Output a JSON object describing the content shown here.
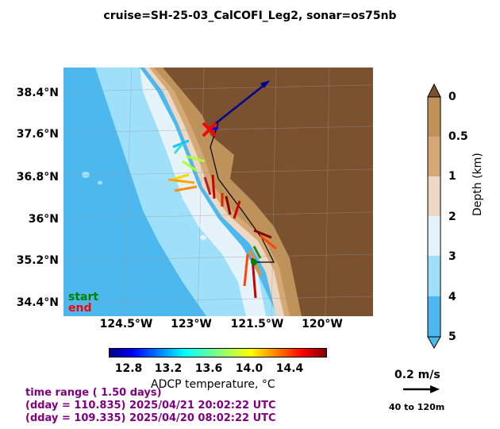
{
  "title": "cruise=SH-25-03_CalCOFI_Leg2,   sonar=os75nb",
  "map": {
    "lat_ticks": [
      "38.4°N",
      "37.6°N",
      "36.8°N",
      "36°N",
      "35.2°N",
      "34.4°N"
    ],
    "lon_ticks": [
      "124.5°W",
      "123°W",
      "121.5°W",
      "120°W"
    ],
    "start_label": "start",
    "end_label": "end",
    "colors": {
      "deep_ocean": "#4db8ee",
      "mid_ocean": "#9ee0fa",
      "shelf": "#e6f3fa",
      "land": "#7a5230",
      "slope1": "#efd8c3",
      "slope2": "#d5a976",
      "coast": "#bf925a",
      "start": "#008000",
      "end": "#ff0000"
    }
  },
  "depth_colorbar": {
    "label": "Depth (km)",
    "ticks": [
      "0",
      "0.5",
      "1",
      "2",
      "3",
      "4",
      "5"
    ]
  },
  "temp_colorbar": {
    "label": "ADCP temperature, °C",
    "ticks": [
      "12.8",
      "13.2",
      "13.6",
      "14.0",
      "14.4"
    ]
  },
  "time_info": {
    "range": "time range ( 1.50 days)",
    "end_time": "(dday = 110.835) 2025/04/21 20:02:22 UTC",
    "start_time": "(dday = 109.335) 2025/04/20 08:02:22 UTC"
  },
  "velocity_key": {
    "speed": "0.2 m/s",
    "depth_range": "40 to 120m"
  }
}
